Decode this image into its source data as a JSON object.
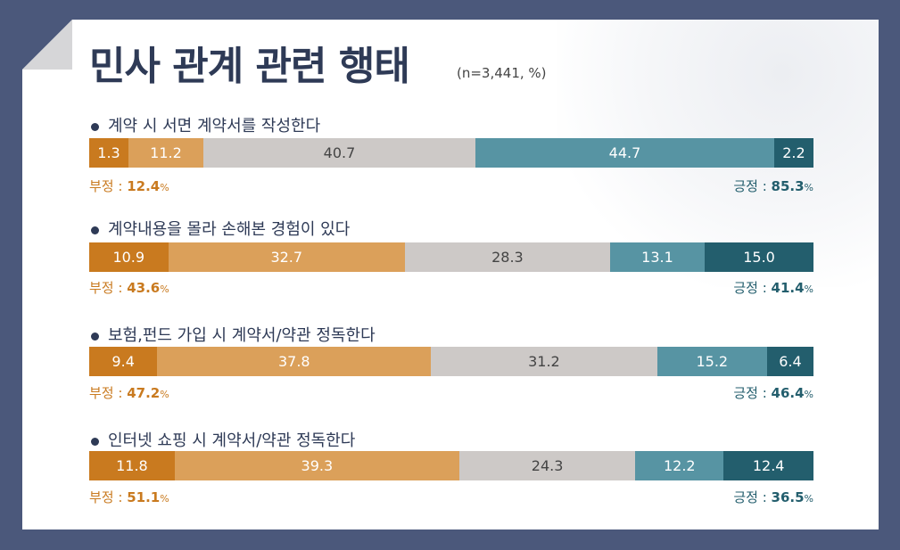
{
  "chart_data": {
    "type": "bar",
    "orientation": "horizontal-stacked-100",
    "title": "민사 관계 관련 행태",
    "subtitle": "(n=3,441, %)",
    "colors": [
      "#c97a1f",
      "#dba05a",
      "#cdc9c7",
      "#5794a3",
      "#235e6d"
    ],
    "negative_label": "부정",
    "positive_label": "긍정",
    "rows": [
      {
        "label": "계약 시 서면 계약서를 작성한다",
        "values": [
          1.3,
          11.2,
          40.7,
          44.7,
          2.2
        ],
        "negative": "12.4",
        "positive": "85.3"
      },
      {
        "label": "계약내용을 몰라 손해본 경험이 있다",
        "values": [
          10.9,
          32.7,
          28.3,
          13.1,
          15.0
        ],
        "negative": "43.6",
        "positive": "41.4"
      },
      {
        "label": "보험,펀드 가입 시 계약서/약관 정독한다",
        "values": [
          9.4,
          37.8,
          31.2,
          15.2,
          6.4
        ],
        "negative": "47.2",
        "positive": "46.4"
      },
      {
        "label": "인터넷 쇼핑 시 계약서/약관 정독한다",
        "values": [
          11.8,
          39.3,
          24.3,
          12.2,
          12.4
        ],
        "negative": "51.1",
        "positive": "36.5"
      }
    ]
  }
}
